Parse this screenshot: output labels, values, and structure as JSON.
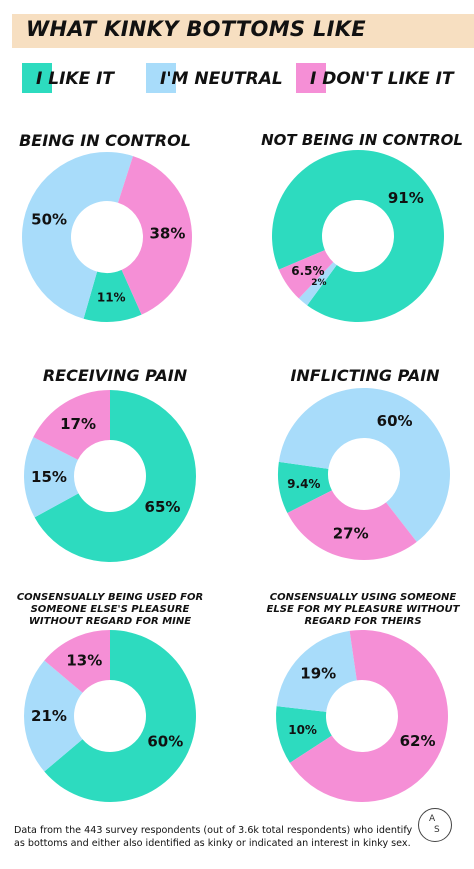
{
  "title": "WHAT KINKY BOTTOMS LIKE",
  "legend": [
    {
      "label": "I LIKE IT",
      "color": "#2ddbbf"
    },
    {
      "label": "I'M NEUTRAL",
      "color": "#a8dcfa"
    },
    {
      "label": "I DON'T LIKE IT",
      "color": "#f58fd6"
    }
  ],
  "chart_data": [
    {
      "type": "pie",
      "title": "BEING IN CONTROL",
      "slices": [
        {
          "label": "I LIKE IT",
          "value": 11,
          "text": "11%"
        },
        {
          "label": "I'M NEUTRAL",
          "value": 50,
          "text": "50%"
        },
        {
          "label": "I DON'T LIKE IT",
          "value": 38,
          "text": "38%"
        }
      ]
    },
    {
      "type": "pie",
      "title": "NOT BEING IN CONTROL",
      "slices": [
        {
          "label": "I LIKE IT",
          "value": 91,
          "text": "91%"
        },
        {
          "label": "I'M NEUTRAL",
          "value": 2,
          "text": "2%"
        },
        {
          "label": "I DON'T LIKE IT",
          "value": 6.5,
          "text": "6.5%"
        }
      ]
    },
    {
      "type": "pie",
      "title": "RECEIVING PAIN",
      "slices": [
        {
          "label": "I LIKE IT",
          "value": 65,
          "text": "65%"
        },
        {
          "label": "I'M NEUTRAL",
          "value": 15,
          "text": "15%"
        },
        {
          "label": "I DON'T LIKE IT",
          "value": 17,
          "text": "17%"
        }
      ]
    },
    {
      "type": "pie",
      "title": "INFLICTING PAIN",
      "slices": [
        {
          "label": "I LIKE IT",
          "value": 9.4,
          "text": "9.4%"
        },
        {
          "label": "I'M NEUTRAL",
          "value": 60,
          "text": "60%"
        },
        {
          "label": "I DON'T LIKE IT",
          "value": 27,
          "text": "27%"
        }
      ]
    },
    {
      "type": "pie",
      "title": "CONSENSUALLY BEING USED FOR SOMEONE ELSE'S PLEASURE WITHOUT REGARD FOR MINE",
      "slices": [
        {
          "label": "I LIKE IT",
          "value": 60,
          "text": "60%"
        },
        {
          "label": "I'M NEUTRAL",
          "value": 21,
          "text": "21%"
        },
        {
          "label": "I DON'T LIKE IT",
          "value": 13,
          "text": "13%"
        }
      ]
    },
    {
      "type": "pie",
      "title": "CONSENSUALLY USING SOMEONE ELSE FOR MY PLEASURE WITHOUT REGARD FOR THEIRS",
      "slices": [
        {
          "label": "I LIKE IT",
          "value": 10,
          "text": "10%"
        },
        {
          "label": "I'M NEUTRAL",
          "value": 19,
          "text": "19%"
        },
        {
          "label": "I DON'T LIKE IT",
          "value": 62,
          "text": "62%"
        }
      ]
    }
  ],
  "footer": "Data from the 443 survey respondents (out of 3.6k total respondents) who identify as bottoms and either also identified as kinky or indicated an interest in kinky sex.",
  "logo": {
    "top": "A",
    "bottom": "S"
  }
}
